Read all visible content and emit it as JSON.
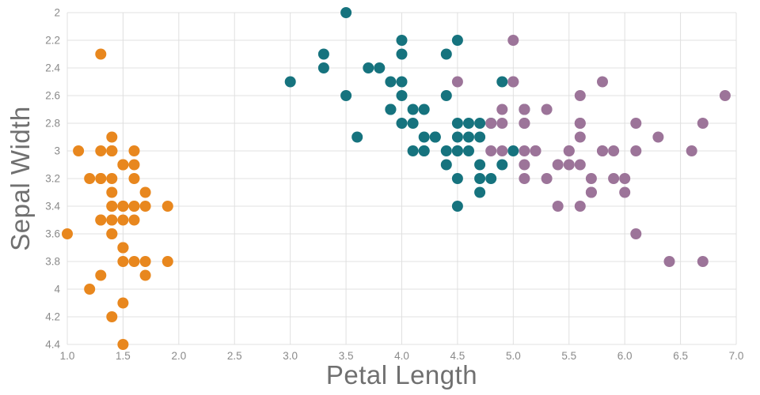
{
  "chart_data": {
    "type": "scatter",
    "title": "",
    "xlabel": "Petal Length",
    "ylabel": "Sepal Width",
    "xlim": [
      1.0,
      7.0
    ],
    "ylim": [
      2.0,
      4.4
    ],
    "y_axis_inverted": true,
    "grid": true,
    "legend": "none",
    "x_ticks": [
      1.0,
      1.5,
      2.0,
      2.5,
      3.0,
      3.5,
      4.0,
      4.5,
      5.0,
      5.5,
      6.0,
      6.5,
      7.0
    ],
    "x_tick_labels": [
      "1.0",
      "1.5",
      "2.0",
      "2.5",
      "3.0",
      "3.5",
      "4.0",
      "4.5",
      "5.0",
      "5.5",
      "6.0",
      "6.5",
      "7.0"
    ],
    "y_ticks": [
      2.0,
      2.2,
      2.4,
      2.6,
      2.8,
      3.0,
      3.2,
      3.4,
      3.6,
      3.8,
      4.0,
      4.2,
      4.4
    ],
    "y_tick_labels": [
      "2",
      "2.2",
      "2.4",
      "2.6",
      "2.8",
      "3",
      "3.2",
      "3.4",
      "3.6",
      "3.8",
      "4",
      "4.2",
      "4.4"
    ],
    "marker": {
      "shape": "circle",
      "radius_px": 7
    },
    "colors": {
      "grid": "#E0E0E0",
      "axis_text": "#8A8A8A",
      "axis_title": "#707070",
      "background": "#FFFFFF"
    },
    "series": [
      {
        "name": "orange",
        "color": "#E8871E",
        "x": [
          1.4,
          1.4,
          1.3,
          1.5,
          1.4,
          1.7,
          1.4,
          1.5,
          1.4,
          1.5,
          1.5,
          1.6,
          1.4,
          1.1,
          1.2,
          1.5,
          1.3,
          1.4,
          1.7,
          1.5,
          1.7,
          1.5,
          1.0,
          1.7,
          1.9,
          1.6,
          1.6,
          1.5,
          1.4,
          1.6,
          1.6,
          1.5,
          1.5,
          1.4,
          1.5,
          1.2,
          1.3,
          1.4,
          1.3,
          1.5,
          1.3,
          1.3,
          1.3,
          1.6,
          1.9,
          1.4,
          1.6,
          1.4,
          1.5,
          1.4
        ],
        "y": [
          3.5,
          3.0,
          3.2,
          3.1,
          3.6,
          3.9,
          3.4,
          3.4,
          2.9,
          3.1,
          3.7,
          3.4,
          3.0,
          3.0,
          4.0,
          4.4,
          3.9,
          3.5,
          3.8,
          3.8,
          3.4,
          3.7,
          3.6,
          3.3,
          3.4,
          3.0,
          3.4,
          3.5,
          3.4,
          3.2,
          3.1,
          3.4,
          4.1,
          4.2,
          3.1,
          3.2,
          3.5,
          3.6,
          3.0,
          3.4,
          3.5,
          2.3,
          3.2,
          3.5,
          3.8,
          3.0,
          3.8,
          3.2,
          3.7,
          3.3
        ]
      },
      {
        "name": "teal",
        "color": "#16737E",
        "x": [
          4.7,
          4.5,
          4.9,
          4.0,
          4.6,
          4.5,
          4.7,
          3.3,
          4.6,
          3.9,
          3.5,
          4.2,
          4.0,
          4.7,
          3.6,
          4.4,
          4.5,
          4.1,
          4.5,
          3.9,
          4.8,
          4.0,
          4.9,
          4.7,
          4.3,
          4.4,
          4.8,
          5.0,
          4.5,
          3.5,
          3.8,
          3.7,
          3.9,
          5.1,
          4.5,
          4.5,
          4.7,
          4.4,
          4.1,
          4.0,
          4.4,
          4.6,
          4.0,
          3.3,
          4.2,
          4.2,
          4.2,
          4.3,
          3.0,
          4.1
        ],
        "y": [
          3.2,
          3.2,
          3.1,
          2.3,
          2.8,
          2.8,
          3.3,
          2.4,
          2.9,
          2.7,
          2.0,
          3.0,
          2.2,
          2.9,
          2.9,
          3.1,
          3.0,
          2.7,
          2.2,
          2.5,
          3.2,
          2.8,
          2.5,
          2.8,
          2.9,
          3.0,
          2.8,
          3.0,
          2.9,
          2.6,
          2.4,
          2.4,
          2.7,
          2.7,
          3.0,
          3.4,
          3.1,
          2.3,
          3.0,
          2.5,
          2.6,
          3.0,
          2.6,
          2.3,
          2.7,
          3.0,
          2.9,
          2.9,
          2.5,
          2.8
        ]
      },
      {
        "name": "purple",
        "color": "#9C7499",
        "x": [
          6.0,
          5.1,
          5.9,
          5.6,
          5.8,
          6.6,
          4.5,
          6.3,
          5.8,
          6.1,
          5.1,
          5.3,
          5.5,
          5.0,
          5.1,
          5.3,
          5.5,
          6.7,
          6.9,
          5.0,
          5.7,
          4.9,
          6.7,
          4.9,
          5.7,
          6.0,
          4.8,
          4.9,
          5.6,
          5.8,
          6.1,
          6.4,
          5.6,
          5.1,
          5.6,
          6.1,
          5.6,
          5.5,
          4.8,
          5.4,
          5.6,
          5.1,
          5.1,
          5.9,
          5.7,
          5.2,
          5.0,
          5.2,
          5.4,
          5.1
        ],
        "y": [
          3.3,
          2.7,
          3.0,
          2.9,
          3.0,
          3.0,
          2.5,
          2.9,
          2.5,
          3.6,
          3.2,
          2.7,
          3.0,
          2.5,
          2.8,
          3.2,
          3.0,
          3.8,
          2.6,
          2.2,
          3.2,
          2.8,
          2.8,
          2.7,
          3.3,
          3.2,
          2.8,
          3.0,
          2.8,
          3.0,
          2.8,
          3.8,
          2.8,
          2.8,
          2.6,
          3.0,
          3.4,
          3.1,
          3.0,
          3.1,
          3.1,
          3.1,
          2.7,
          3.2,
          3.3,
          3.0,
          2.5,
          3.0,
          3.4,
          3.0
        ]
      }
    ]
  }
}
